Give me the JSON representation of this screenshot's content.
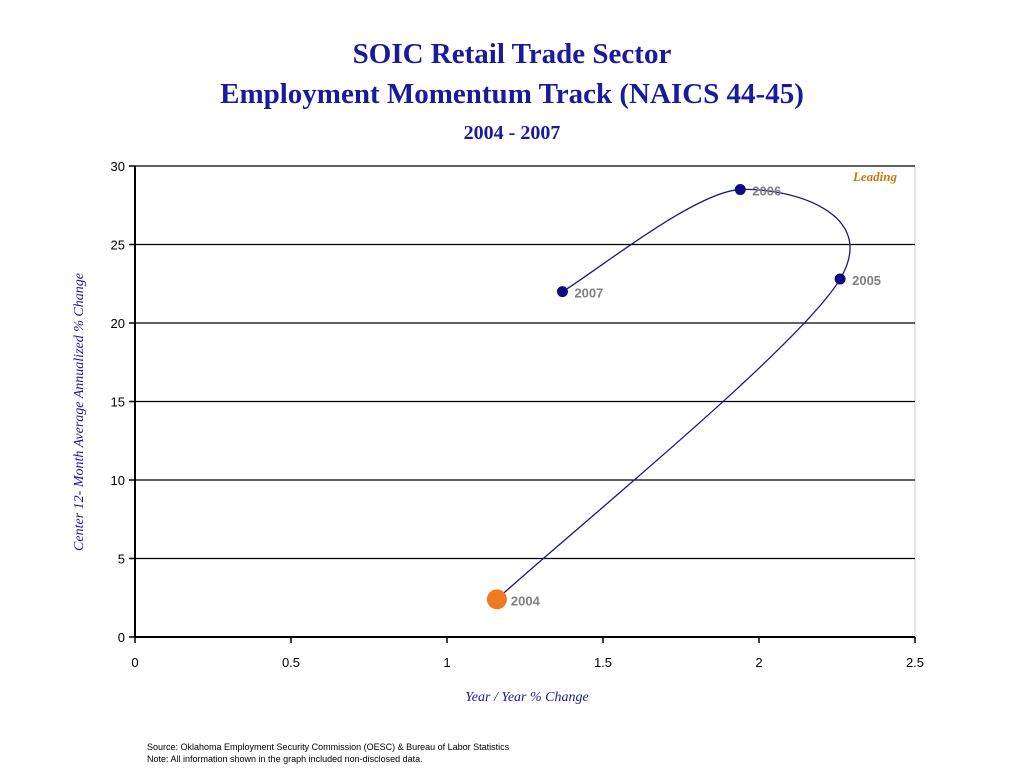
{
  "title_line1": "SOIC Retail Trade Sector",
  "title_line2": "Employment Momentum Track (NAICS 44-45)",
  "subtitle": "2004 - 2007",
  "source_line1": "Source:  Oklahoma Employment Security Commission (OESC) & Bureau of Labor Statistics",
  "source_line2": "Note: All information shown in the graph included non-disclosed data.",
  "colors": {
    "title": "#1a1a9c",
    "track": "#1a1a7a",
    "point": "#0d0d80",
    "start_point": "#f07a20",
    "leading_label": "#c87a10",
    "point_label": "#808080"
  },
  "chart_data": {
    "type": "scatter",
    "title": "SOIC Retail Trade Sector Employment Momentum Track (NAICS 44-45)",
    "subtitle": "2004 - 2007",
    "xlabel": "Year / Year % Change",
    "ylabel": "Center 12- Month Average Annualized % Change",
    "xlim": [
      0,
      2.5
    ],
    "ylim": [
      0,
      30
    ],
    "x_ticks": [
      "0",
      "0.5",
      "1",
      "1.5",
      "2",
      "2.5"
    ],
    "y_ticks": [
      "0",
      "5",
      "10",
      "15",
      "20",
      "25",
      "30"
    ],
    "grid": "horizontal",
    "quadrant_label": "Leading",
    "points": [
      {
        "label": "2004",
        "x": 1.16,
        "y": 2.4
      },
      {
        "label": "2005",
        "x": 2.26,
        "y": 22.8
      },
      {
        "label": "2006",
        "x": 1.94,
        "y": 28.5
      },
      {
        "label": "2007",
        "x": 1.37,
        "y": 22.0
      }
    ]
  }
}
